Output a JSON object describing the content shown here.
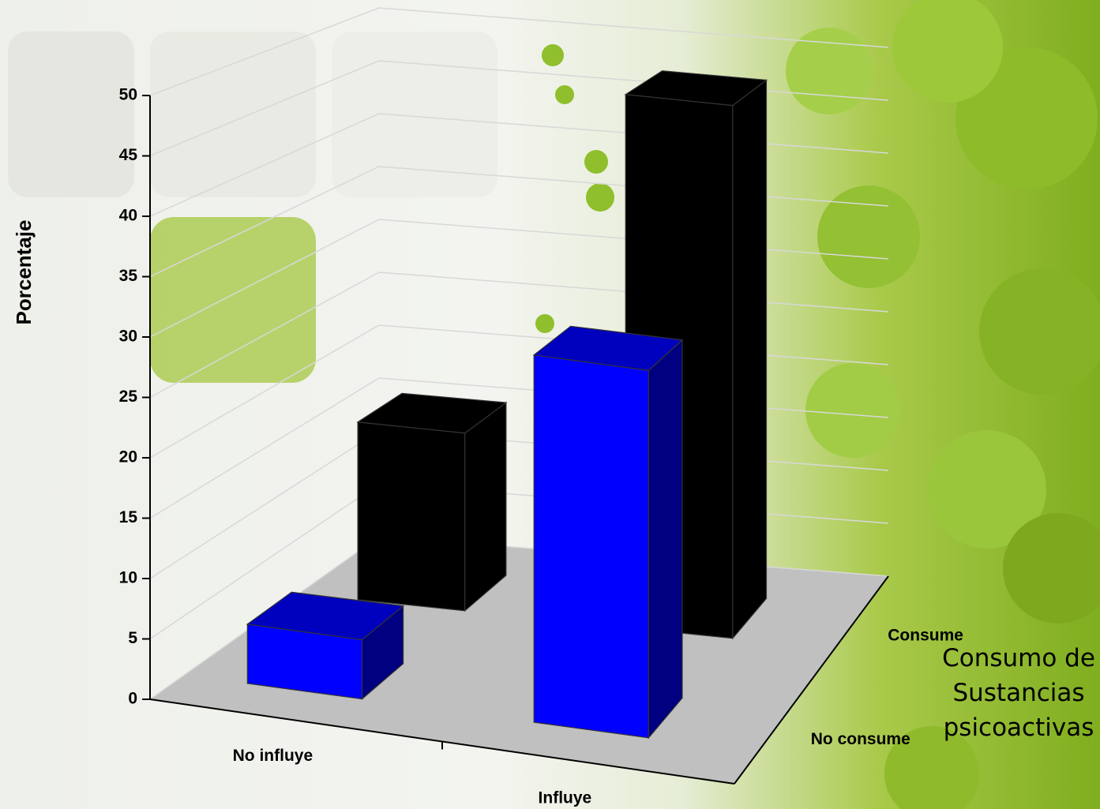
{
  "chart_data": {
    "type": "bar3d",
    "y_axis_label": "Porcentaje",
    "z_axis_label": "Consumo de Sustancias psicoactivas",
    "categories": [
      "No influye",
      "Influye"
    ],
    "series": [
      {
        "name": "No consume",
        "color": "#0000ff",
        "values": [
          5,
          31
        ]
      },
      {
        "name": "Consume",
        "color": "#000000",
        "values": [
          16,
          48
        ]
      }
    ],
    "ylim": [
      0,
      50
    ],
    "yticks": [
      0,
      5,
      10,
      15,
      20,
      25,
      30,
      35,
      40,
      45,
      50
    ],
    "grid": true,
    "floor_color": "#c0c0c0"
  }
}
